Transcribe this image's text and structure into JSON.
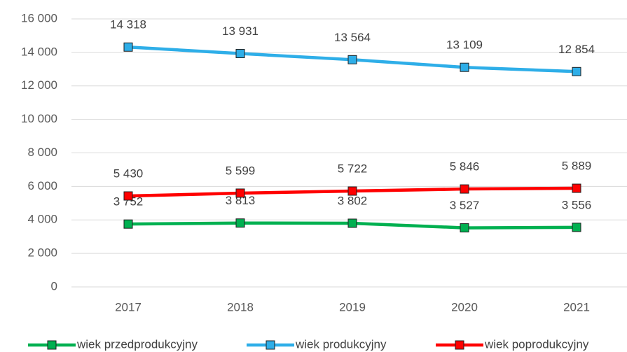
{
  "chart_data": {
    "type": "line",
    "categories": [
      "2017",
      "2018",
      "2019",
      "2020",
      "2021"
    ],
    "series": [
      {
        "name": "wiek przedprodukcyjny",
        "color": "#00b050",
        "values": [
          3752,
          3813,
          3802,
          3527,
          3556
        ],
        "value_labels": [
          "3 752",
          "3 813",
          "3 802",
          "3 527",
          "3 556"
        ]
      },
      {
        "name": "wiek produkcyjny",
        "color": "#2eaee8",
        "values": [
          14318,
          13931,
          13564,
          13109,
          12854
        ],
        "value_labels": [
          "14 318",
          "13 931",
          "13 564",
          "13 109",
          "12 854"
        ]
      },
      {
        "name": "wiek poprodukcyjny",
        "color": "#ff0000",
        "values": [
          5430,
          5599,
          5722,
          5846,
          5889
        ],
        "value_labels": [
          "5 430",
          "5 599",
          "5 722",
          "5 846",
          "5 889"
        ]
      }
    ],
    "ylim": [
      0,
      16000
    ],
    "yticks": [
      0,
      {
        "value": 2000,
        "label": "2 000"
      },
      {
        "value": 4000,
        "label": "4 000"
      },
      {
        "value": 6000,
        "label": "6 000"
      },
      {
        "value": 8000,
        "label": "8 000"
      },
      {
        "value": 10000,
        "label": "10 000"
      },
      {
        "value": 12000,
        "label": "12 000"
      },
      {
        "value": 14000,
        "label": "14 000"
      },
      {
        "value": 16000,
        "label": "16 000"
      }
    ],
    "grid": true,
    "legend": "bottom"
  }
}
